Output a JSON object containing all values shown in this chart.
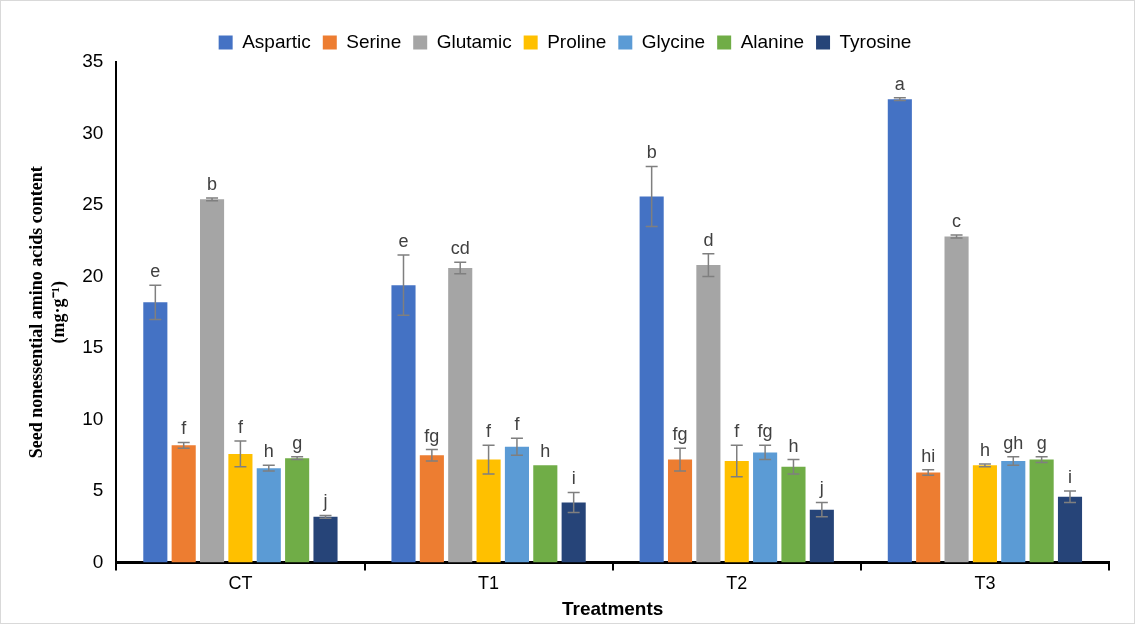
{
  "chart_data": {
    "type": "bar",
    "xlabel": "Treatments",
    "ylabel": "Seed nonessential amino acids content\n(mg·g⁻¹)",
    "categories": [
      "CT",
      "T1",
      "T2",
      "T3"
    ],
    "series": [
      {
        "name": "Aspartic",
        "color": "#4472c4",
        "values": [
          18.2,
          19.4,
          25.6,
          32.4
        ],
        "errors": [
          1.2,
          2.1,
          2.1,
          0.1
        ],
        "value_labels": [
          "e",
          "e",
          "b",
          "a"
        ]
      },
      {
        "name": "Serine",
        "color": "#ed7d31",
        "values": [
          8.2,
          7.5,
          7.2,
          6.3
        ],
        "errors": [
          0.2,
          0.4,
          0.8,
          0.2
        ],
        "value_labels": [
          "f",
          "fg",
          "fg",
          "hi"
        ]
      },
      {
        "name": "Glutamic",
        "color": "#a5a5a5",
        "values": [
          25.4,
          20.6,
          20.8,
          22.8
        ],
        "errors": [
          0.1,
          0.4,
          0.8,
          0.1
        ],
        "value_labels": [
          "b",
          "cd",
          "d",
          "c"
        ]
      },
      {
        "name": "Proline",
        "color": "#ffc000",
        "values": [
          7.6,
          7.2,
          7.1,
          6.8
        ],
        "errors": [
          0.9,
          1.0,
          1.1,
          0.1
        ],
        "value_labels": [
          "f",
          "f",
          "f",
          "h"
        ]
      },
      {
        "name": "Glycine",
        "color": "#5b9bd5",
        "values": [
          6.6,
          8.1,
          7.7,
          7.1
        ],
        "errors": [
          0.2,
          0.6,
          0.5,
          0.3
        ],
        "value_labels": [
          "h",
          "f",
          "fg",
          "gh"
        ]
      },
      {
        "name": "Alanine",
        "color": "#70ad47",
        "values": [
          7.3,
          6.8,
          6.7,
          7.2
        ],
        "errors": [
          0.1,
          null,
          0.5,
          0.2
        ],
        "value_labels": [
          "g",
          "h",
          "h",
          "g"
        ]
      },
      {
        "name": "Tyrosine",
        "color": "#264478",
        "values": [
          3.2,
          4.2,
          3.7,
          4.6
        ],
        "errors": [
          0.1,
          0.7,
          0.5,
          0.4
        ],
        "value_labels": [
          "j",
          "i",
          "j",
          "i"
        ]
      }
    ],
    "ylim": [
      0,
      35
    ],
    "yticks": [
      0,
      5,
      10,
      15,
      20,
      25,
      30,
      35
    ],
    "grid": false,
    "legend": "top"
  }
}
